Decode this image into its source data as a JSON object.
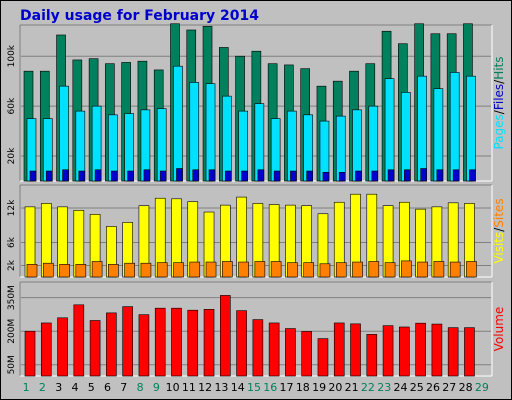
{
  "title": "Daily usage for February 2014",
  "colors": {
    "background": "#C0C0C0",
    "title": "#0000CC",
    "hits": "#00805C",
    "files": "#00E0FF",
    "pages": "#0000CC",
    "visits": "#FFFF00",
    "sites": "#FF8000",
    "volume": "#FF0000",
    "weekday_label": "#000000",
    "weekend_label": "#00805C"
  },
  "chart_data": [
    {
      "type": "bar",
      "panel": "hits-files-pages",
      "categories": [
        "1",
        "2",
        "3",
        "4",
        "5",
        "6",
        "7",
        "8",
        "9",
        "10",
        "11",
        "12",
        "13",
        "14",
        "15",
        "16",
        "17",
        "18",
        "19",
        "20",
        "21",
        "22",
        "23",
        "24",
        "25",
        "26",
        "27",
        "28",
        "29"
      ],
      "weekend_days": [
        "1",
        "2",
        "8",
        "9",
        "15",
        "16",
        "22",
        "23",
        "29"
      ],
      "y_ticks": [
        "20k",
        "60k",
        "100k"
      ],
      "y_tick_values": [
        20000,
        60000,
        100000
      ],
      "ylim": [
        0,
        125000
      ],
      "legend": {
        "pages": "Pages",
        "files": "Files",
        "hits": "Hits",
        "separator": "/"
      },
      "series": [
        {
          "name": "Hits",
          "values": [
            88000,
            88000,
            117000,
            97000,
            98000,
            94000,
            95000,
            96000,
            89000,
            126000,
            121000,
            124000,
            107000,
            100000,
            104000,
            94000,
            93000,
            90000,
            76000,
            80000,
            88000,
            94000,
            120000,
            110000,
            126000,
            118000,
            118000,
            126000,
            0
          ]
        },
        {
          "name": "Files",
          "values": [
            50000,
            50000,
            76000,
            56000,
            60000,
            53000,
            54000,
            57000,
            58000,
            92000,
            79000,
            78000,
            68000,
            56000,
            62000,
            50000,
            56000,
            53000,
            48000,
            52000,
            57000,
            60000,
            82000,
            71000,
            84000,
            74000,
            87000,
            84000,
            0
          ]
        },
        {
          "name": "Pages",
          "values": [
            8000,
            8000,
            9000,
            8000,
            9000,
            8000,
            8000,
            9000,
            8000,
            10000,
            9000,
            9000,
            8000,
            8000,
            9000,
            8000,
            8000,
            8000,
            7000,
            7000,
            8000,
            8000,
            9000,
            9000,
            10000,
            9000,
            9000,
            9000,
            0
          ]
        }
      ]
    },
    {
      "type": "bar",
      "panel": "visits-sites",
      "categories": [
        "1",
        "2",
        "3",
        "4",
        "5",
        "6",
        "7",
        "8",
        "9",
        "10",
        "11",
        "12",
        "13",
        "14",
        "15",
        "16",
        "17",
        "18",
        "19",
        "20",
        "21",
        "22",
        "23",
        "24",
        "25",
        "26",
        "27",
        "28",
        "29"
      ],
      "y_ticks": [
        "2k",
        "6k",
        "12k"
      ],
      "y_tick_values": [
        2000,
        6000,
        12000
      ],
      "ylim": [
        0,
        16000
      ],
      "legend": {
        "visits": "Visits",
        "sites": "Sites",
        "separator": "/"
      },
      "series": [
        {
          "name": "Visits",
          "values": [
            12200,
            12800,
            12200,
            11600,
            10900,
            8800,
            9500,
            12400,
            13700,
            13600,
            13100,
            11300,
            12500,
            13900,
            12800,
            12600,
            12500,
            12400,
            11000,
            13000,
            14400,
            14400,
            12400,
            13000,
            11800,
            12200,
            12900,
            12800,
            0
          ]
        },
        {
          "name": "Sites",
          "values": [
            2200,
            2400,
            2200,
            2200,
            2700,
            2200,
            2400,
            2400,
            2500,
            2500,
            2600,
            2600,
            2700,
            2600,
            2700,
            2700,
            2500,
            2500,
            2300,
            2500,
            2600,
            2700,
            2500,
            2800,
            2600,
            2700,
            2600,
            2700,
            0
          ]
        }
      ]
    },
    {
      "type": "bar",
      "panel": "volume",
      "categories": [
        "1",
        "2",
        "3",
        "4",
        "5",
        "6",
        "7",
        "8",
        "9",
        "10",
        "11",
        "12",
        "13",
        "14",
        "15",
        "16",
        "17",
        "18",
        "19",
        "20",
        "21",
        "22",
        "23",
        "24",
        "25",
        "26",
        "27",
        "28",
        "29"
      ],
      "y_ticks": [
        "50M",
        "200M",
        "350M"
      ],
      "y_tick_values": [
        50,
        200,
        350
      ],
      "ylim": [
        0,
        420
      ],
      "legend": {
        "volume": "Volume"
      },
      "series": [
        {
          "name": "Volume",
          "values": [
            200,
            237,
            260,
            318,
            248,
            282,
            310,
            274,
            303,
            303,
            294,
            298,
            360,
            292,
            252,
            237,
            212,
            199,
            167,
            237,
            233,
            186,
            225,
            219,
            236,
            232,
            216,
            216,
            0
          ]
        }
      ]
    }
  ]
}
